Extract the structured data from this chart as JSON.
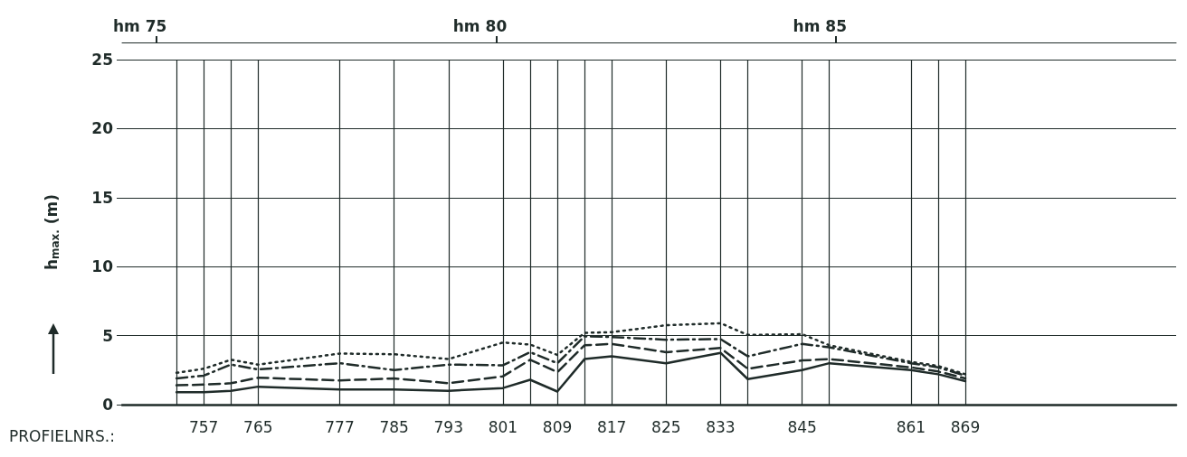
{
  "chart_data": {
    "type": "line",
    "xlabel": "PROFIELNRS.:",
    "ylabel": "h$_{max.}$ (m)",
    "x": [
      753,
      757,
      761,
      765,
      777,
      785,
      793,
      801,
      805,
      809,
      813,
      817,
      825,
      833,
      837,
      845,
      849,
      861,
      865,
      869
    ],
    "series": [
      {
        "color": "#1f2b29",
        "line_style": "solid",
        "values": [
          0.9,
          0.9,
          1.0,
          1.3,
          1.1,
          1.1,
          1.0,
          1.2,
          1.8,
          0.95,
          3.3,
          3.5,
          3.0,
          3.75,
          1.85,
          2.5,
          3.0,
          2.5,
          2.2,
          1.7
        ]
      },
      {
        "color": "#1f2b29",
        "line_style": "dashed",
        "values": [
          1.4,
          1.45,
          1.55,
          1.95,
          1.75,
          1.9,
          1.55,
          2.05,
          3.25,
          2.35,
          4.3,
          4.4,
          3.8,
          4.1,
          2.6,
          3.2,
          3.3,
          2.7,
          2.4,
          1.9
        ]
      },
      {
        "color": "#1f2b29",
        "line_style": "dashdot",
        "values": [
          1.9,
          2.1,
          2.9,
          2.55,
          3.0,
          2.5,
          2.9,
          2.85,
          3.8,
          3.0,
          4.95,
          4.9,
          4.7,
          4.75,
          3.5,
          4.4,
          4.15,
          3.0,
          2.7,
          2.1
        ]
      },
      {
        "color": "#1f2b29",
        "line_style": "dotted",
        "values": [
          2.3,
          2.6,
          3.25,
          2.9,
          3.7,
          3.65,
          3.3,
          4.5,
          4.35,
          3.6,
          5.2,
          5.25,
          5.75,
          5.9,
          5.05,
          5.1,
          4.3,
          3.1,
          2.8,
          2.2
        ]
      }
    ],
    "xlim": [
      745,
      900
    ],
    "xticks": [
      {
        "value": 753,
        "label": null
      },
      757,
      {
        "value": 761,
        "label": null
      },
      765,
      777,
      785,
      793,
      801,
      {
        "value": 805,
        "label": null
      },
      809,
      {
        "value": 813,
        "label": null
      },
      817,
      825,
      833,
      {
        "value": 837,
        "label": null
      },
      845,
      {
        "value": 849,
        "label": null
      },
      861,
      {
        "value": 865,
        "label": null
      },
      869
    ],
    "x2lim": [
      74.5,
      90
    ],
    "x2label": "hm",
    "x2ticks": [
      75,
      80,
      85
    ],
    "ylim": [
      0,
      25
    ],
    "yticks": [
      0,
      5,
      10,
      15,
      20,
      25
    ],
    "grid": true,
    "marker": "none"
  }
}
